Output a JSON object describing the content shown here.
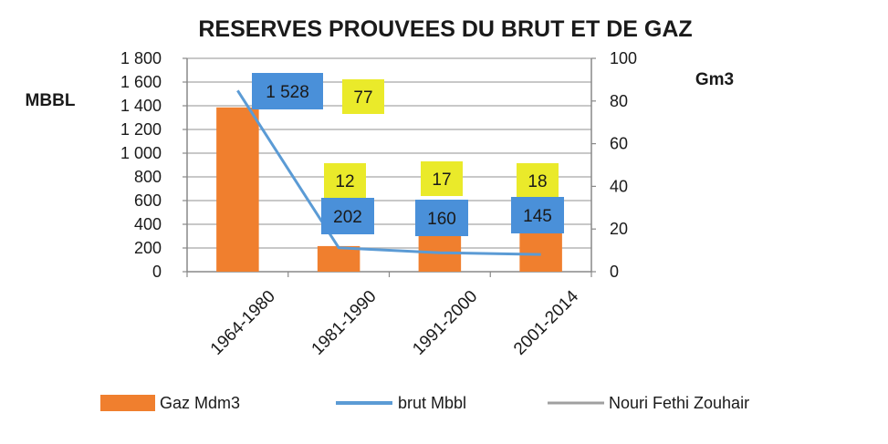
{
  "chart_data": {
    "type": "bar",
    "title": "RESERVES PROUVEES DU BRUT ET DE GAZ",
    "categories": [
      "1964-1980",
      "1981-1990",
      "1991-2000",
      "2001-2014"
    ],
    "y_left": {
      "label": "MBBL",
      "range": [
        0,
        1800
      ],
      "ticks": [
        "0",
        "200",
        "400",
        "600",
        "800",
        "1 000",
        "1 200",
        "1 400",
        "1 600",
        "1 800"
      ],
      "tick_values": [
        0,
        200,
        400,
        600,
        800,
        1000,
        1200,
        1400,
        1600,
        1800
      ]
    },
    "y_right": {
      "label": "Gm3",
      "range": [
        0,
        100
      ],
      "ticks": [
        "0",
        "20",
        "40",
        "60",
        "80",
        "100"
      ],
      "tick_values": [
        0,
        20,
        40,
        60,
        80,
        100
      ]
    },
    "grid": true,
    "legend_position": "bottom",
    "series": [
      {
        "name": "Gaz Mdm3",
        "kind": "bar",
        "axis": "right",
        "color": "#F07F2E",
        "values": [
          77,
          12,
          17,
          18
        ],
        "data_labels": [
          "77",
          "12",
          "17",
          "18"
        ],
        "label_color": "#EAEA2A"
      },
      {
        "name": "brut Mbbl",
        "kind": "line",
        "axis": "left",
        "color": "#5B9BD5",
        "values": [
          1528,
          202,
          160,
          145
        ],
        "data_labels": [
          "1 528",
          "202",
          "160",
          "145"
        ],
        "label_color": "#4A90D9"
      },
      {
        "name": "Nouri Fethi Zouhair",
        "kind": "legend-only",
        "color": "#A0A0A0"
      }
    ]
  }
}
